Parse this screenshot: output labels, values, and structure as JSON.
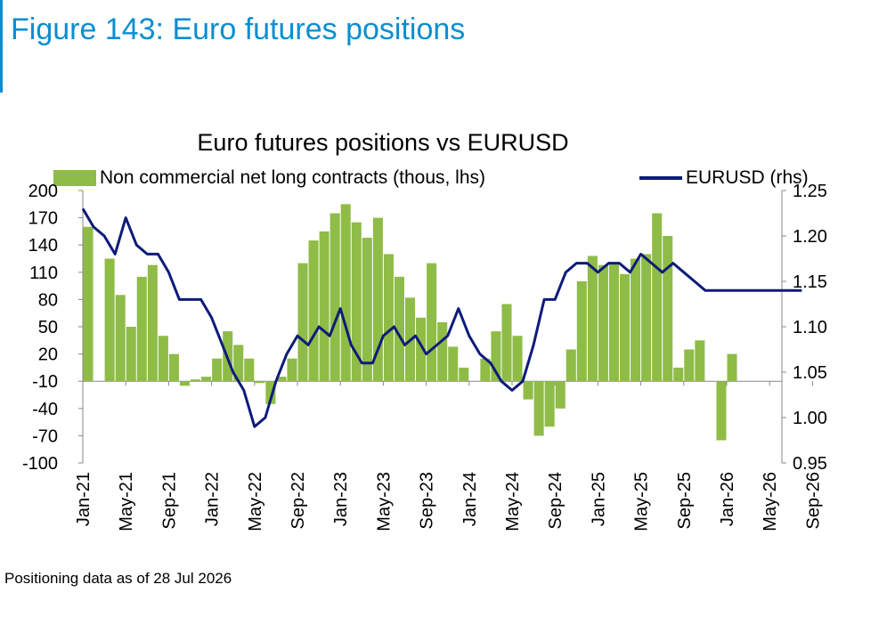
{
  "figure_title": "Figure 143: Euro futures positions",
  "footnote": "Positioning data as of 28 Jul 2026",
  "colors": {
    "figure_title": "#0a8ed0",
    "bars": "#8fbc46",
    "line": "#0d1b7a"
  },
  "chart_data": {
    "type": "bar+line",
    "title": "Euro futures positions vs EURUSD",
    "legend_position": "top",
    "grid": false,
    "x_tick_labels": [
      "Jan-21",
      "May-21",
      "Sep-21",
      "Jan-22",
      "May-22",
      "Sep-22",
      "Jan-23",
      "May-23",
      "Sep-23",
      "Jan-24",
      "May-24",
      "Sep-24",
      "Jan-25",
      "May-25",
      "Sep-25",
      "Jan-26",
      "May-26",
      "Sep-26"
    ],
    "y_left": {
      "ticks": [
        200,
        170,
        140,
        110,
        80,
        50,
        20,
        -10,
        -40,
        -70,
        -100
      ],
      "ylim": [
        -100,
        200
      ]
    },
    "y_right": {
      "ticks": [
        "1.25",
        "1.20",
        "1.15",
        "1.10",
        "1.05",
        "1.00",
        "0.95"
      ],
      "ylim": [
        0.95,
        1.25
      ]
    },
    "series": [
      {
        "name": "Non commercial net long contracts (thous, lhs)",
        "type": "bar",
        "axis": "left",
        "x_months": [
          0,
          2,
          3,
          4,
          5,
          6,
          7,
          8,
          9,
          10,
          11,
          12,
          13,
          14,
          15,
          16,
          17,
          18,
          19,
          20,
          21,
          22,
          23,
          24,
          25,
          26,
          27,
          28,
          29,
          30,
          31,
          32,
          33,
          34,
          35,
          36,
          37,
          38,
          39,
          40,
          41,
          42,
          43,
          44,
          45,
          46,
          47,
          48,
          49,
          50,
          51,
          52,
          53,
          54,
          55,
          56,
          57,
          58,
          59,
          60,
          61,
          62,
          63,
          64,
          65,
          66,
          67
        ],
        "values": [
          160,
          125,
          85,
          50,
          105,
          118,
          40,
          20,
          -15,
          -8,
          -5,
          15,
          45,
          30,
          15,
          -12,
          -35,
          -5,
          15,
          120,
          145,
          155,
          175,
          185,
          165,
          148,
          170,
          130,
          105,
          82,
          60,
          120,
          55,
          28,
          5,
          -10,
          15,
          45,
          75,
          40,
          -30,
          -70,
          -60,
          -40,
          25,
          100,
          128,
          118,
          120,
          108,
          125,
          130,
          175,
          150,
          5,
          25,
          35,
          -10,
          -75,
          20,
          0,
          0,
          0,
          0,
          0,
          0,
          0
        ],
        "values_note": "Monthly approximate net long positions (thousands of contracts); months counted from Jan-21"
      },
      {
        "name": "EURUSD (rhs)",
        "type": "line",
        "axis": "right",
        "x_months": [
          0,
          1,
          2,
          3,
          4,
          5,
          6,
          7,
          8,
          9,
          10,
          11,
          12,
          13,
          14,
          15,
          16,
          17,
          18,
          19,
          20,
          21,
          22,
          23,
          24,
          25,
          26,
          27,
          28,
          29,
          30,
          31,
          32,
          33,
          34,
          35,
          36,
          37,
          38,
          39,
          40,
          41,
          42,
          43,
          44,
          45,
          46,
          47,
          48,
          49,
          50,
          51,
          52,
          53,
          54,
          55,
          56,
          57,
          58,
          59,
          60,
          61,
          62,
          63,
          64,
          65,
          66,
          67
        ],
        "values": [
          1.23,
          1.21,
          1.2,
          1.18,
          1.22,
          1.19,
          1.18,
          1.18,
          1.16,
          1.13,
          1.13,
          1.13,
          1.11,
          1.08,
          1.05,
          1.03,
          0.99,
          1.0,
          1.04,
          1.07,
          1.09,
          1.08,
          1.1,
          1.09,
          1.12,
          1.08,
          1.06,
          1.06,
          1.09,
          1.1,
          1.08,
          1.09,
          1.07,
          1.08,
          1.09,
          1.12,
          1.09,
          1.07,
          1.06,
          1.04,
          1.03,
          1.04,
          1.08,
          1.13,
          1.13,
          1.16,
          1.17,
          1.17,
          1.16,
          1.17,
          1.17,
          1.16,
          1.18,
          1.17,
          1.16,
          1.17,
          1.16,
          1.15,
          1.14,
          1.14,
          1.14,
          1.14,
          1.14,
          1.14,
          1.14,
          1.14,
          1.14,
          1.14
        ]
      }
    ]
  }
}
